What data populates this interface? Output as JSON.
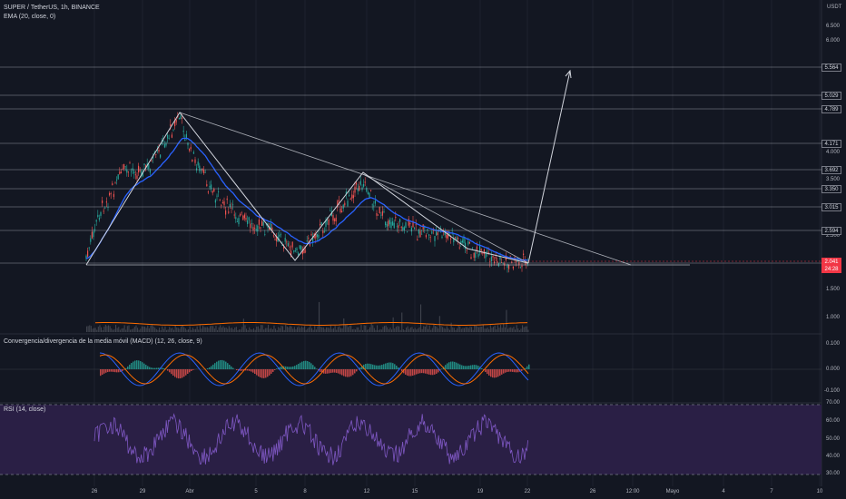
{
  "header": {
    "symbol_line": "SUPER / TetherUS, 1h, BINANCE",
    "ema_label": "EMA (20, close, 0)",
    "quote_currency": "USDT"
  },
  "price_axis": {
    "ticks": [
      "6.500",
      "6.000",
      "5.564",
      "5.029",
      "4.789",
      "4.171",
      "4.000",
      "3.692",
      "3.500",
      "3.350",
      "3.015",
      "2.594",
      "2.500",
      "2.041",
      "24:28",
      "1.500",
      "1.000"
    ],
    "level_tags": [
      "5.564",
      "5.029",
      "4.789",
      "4.171",
      "3.692",
      "3.350",
      "3.015",
      "2.594"
    ],
    "current_price": "2.041",
    "countdown": "24:28"
  },
  "macd": {
    "label": "Convergencia/divergencia de la media móvil (MACD) (12, 26, close, 9)",
    "ticks": [
      "0.100",
      "0.000",
      "-0.100"
    ]
  },
  "rsi": {
    "label": "RSI (14, close)",
    "ticks": [
      "70.00",
      "60.00",
      "50.00",
      "40.00",
      "30.00"
    ]
  },
  "time_axis": {
    "labels": [
      "26",
      "29",
      "Abr",
      "5",
      "8",
      "12",
      "15",
      "19",
      "22",
      "26",
      "12:00",
      "Mayo",
      "4",
      "7",
      "10"
    ]
  },
  "colors": {
    "background": "#131722",
    "grid": "#1e222d",
    "up": "#26a69a",
    "down": "#ef5350",
    "ema": "#2962ff",
    "macd_line": "#2962ff",
    "signal_line": "#ff6d00",
    "rsi_line": "#7e57c2",
    "rsi_band": "#2a1f45",
    "drawing": "#d1d4dc"
  }
}
